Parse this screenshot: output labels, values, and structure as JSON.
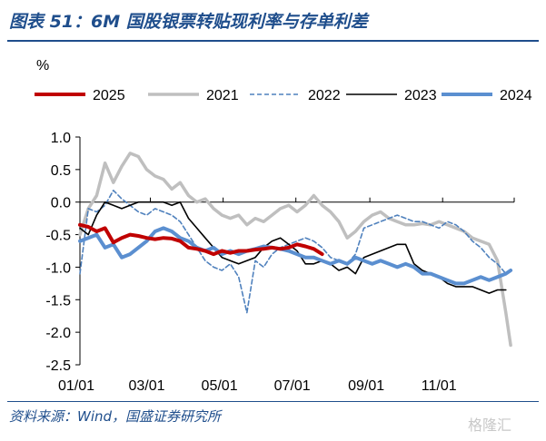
{
  "figure_title": "图表 51：6M 国股银票转贴现利率与存单利差",
  "source": "资料来源：Wind，国盛证券研究所",
  "watermark": "格隆汇",
  "chart_data": {
    "type": "line",
    "unit_label": "%",
    "ylim": [
      -2.5,
      1.0
    ],
    "yticks": [
      1.0,
      0.5,
      0.0,
      -0.5,
      -1.0,
      -1.5,
      -2.0,
      -2.5
    ],
    "ytick_labels": [
      "1.0",
      "0.5",
      "0.0",
      "-0.5",
      "-1.0",
      "-1.5",
      "-2.0",
      "-2.5"
    ],
    "xlim": [
      1,
      365
    ],
    "xticks": [
      1,
      60,
      121,
      182,
      244,
      305
    ],
    "xtick_labels": [
      "01/01",
      "03/01",
      "05/01",
      "07/01",
      "09/01",
      "11/01"
    ],
    "x_unit": "day of year",
    "legend_position": "top",
    "series": [
      {
        "name": "2025",
        "color": "#c00000",
        "dash": "solid",
        "width": 4,
        "x": [
          1,
          8,
          15,
          22,
          29,
          36,
          43,
          50,
          57,
          64,
          71,
          78,
          85,
          92,
          99,
          106,
          113,
          120,
          127,
          134,
          141,
          148,
          155,
          162,
          169,
          176,
          183,
          190,
          197,
          204
        ],
        "y": [
          -0.35,
          -0.38,
          -0.45,
          -0.4,
          -0.62,
          -0.55,
          -0.5,
          -0.52,
          -0.55,
          -0.57,
          -0.55,
          -0.56,
          -0.6,
          -0.7,
          -0.72,
          -0.75,
          -0.8,
          -0.75,
          -0.78,
          -0.75,
          -0.75,
          -0.73,
          -0.72,
          -0.7,
          -0.72,
          -0.7,
          -0.65,
          -0.68,
          -0.72,
          -0.8
        ]
      },
      {
        "name": "2021",
        "color": "#bfbfbf",
        "dash": "solid",
        "width": 3.5,
        "x": [
          1,
          8,
          15,
          22,
          29,
          36,
          43,
          50,
          57,
          64,
          71,
          78,
          85,
          92,
          99,
          106,
          113,
          120,
          127,
          134,
          141,
          148,
          155,
          162,
          169,
          176,
          183,
          190,
          197,
          204,
          211,
          218,
          225,
          232,
          239,
          246,
          253,
          260,
          267,
          274,
          281,
          288,
          295,
          302,
          309,
          316,
          323,
          330,
          337,
          344,
          351,
          358,
          362
        ],
        "y": [
          -0.5,
          -0.1,
          0.1,
          0.6,
          0.3,
          0.55,
          0.75,
          0.7,
          0.5,
          0.4,
          0.35,
          0.2,
          0.3,
          0.1,
          0.0,
          0.05,
          -0.1,
          -0.2,
          -0.25,
          -0.2,
          -0.35,
          -0.25,
          -0.3,
          -0.2,
          -0.1,
          -0.05,
          -0.15,
          -0.05,
          0.1,
          -0.05,
          -0.15,
          -0.3,
          -0.55,
          -0.45,
          -0.3,
          -0.2,
          -0.15,
          -0.25,
          -0.3,
          -0.35,
          -0.35,
          -0.33,
          -0.35,
          -0.3,
          -0.35,
          -0.4,
          -0.45,
          -0.55,
          -0.6,
          -0.65,
          -0.9,
          -1.7,
          -2.2
        ]
      },
      {
        "name": "2022",
        "color": "#4f81bd",
        "dash": "dashed",
        "width": 1.6,
        "x": [
          1,
          8,
          15,
          22,
          29,
          36,
          43,
          50,
          57,
          64,
          71,
          78,
          85,
          92,
          99,
          106,
          113,
          120,
          127,
          134,
          141,
          148,
          155,
          162,
          169,
          176,
          183,
          190,
          197,
          204,
          211,
          218,
          225,
          232,
          239,
          246,
          253,
          260,
          267,
          274,
          281,
          288,
          295,
          302,
          309,
          316,
          323,
          330,
          337,
          344,
          351,
          358
        ],
        "y": [
          -1.1,
          -0.1,
          -0.15,
          -0.05,
          0.18,
          0.05,
          -0.05,
          -0.15,
          -0.2,
          -0.1,
          -0.15,
          -0.2,
          -0.3,
          -0.5,
          -0.7,
          -0.9,
          -1.0,
          -1.05,
          -0.95,
          -1.15,
          -1.7,
          -0.9,
          -1.0,
          -0.8,
          -0.7,
          -0.65,
          -0.6,
          -0.55,
          -0.6,
          -0.7,
          -0.85,
          -0.9,
          -0.95,
          -0.8,
          -0.4,
          -0.35,
          -0.3,
          -0.25,
          -0.2,
          -0.25,
          -0.3,
          -0.3,
          -0.35,
          -0.4,
          -0.3,
          -0.35,
          -0.45,
          -0.6,
          -0.7,
          -0.85,
          -0.95,
          -1.1
        ]
      },
      {
        "name": "2023",
        "color": "#000000",
        "dash": "solid",
        "width": 1.6,
        "x": [
          1,
          8,
          15,
          22,
          29,
          36,
          43,
          50,
          57,
          64,
          71,
          78,
          85,
          92,
          99,
          106,
          113,
          120,
          127,
          134,
          141,
          148,
          155,
          162,
          169,
          176,
          183,
          190,
          197,
          204,
          211,
          218,
          225,
          232,
          239,
          246,
          253,
          260,
          267,
          274,
          281,
          288,
          295,
          302,
          309,
          316,
          323,
          330,
          337,
          344,
          351,
          358
        ],
        "y": [
          -0.4,
          -0.5,
          -0.2,
          0.0,
          -0.05,
          -0.1,
          -0.05,
          0.0,
          0.0,
          0.0,
          0.0,
          -0.05,
          0.0,
          -0.25,
          -0.4,
          -0.55,
          -0.7,
          -0.85,
          -0.9,
          -0.95,
          -0.9,
          -0.85,
          -0.7,
          -0.6,
          -0.55,
          -0.65,
          -0.75,
          -0.95,
          -0.95,
          -0.9,
          -0.95,
          -1.05,
          -1.0,
          -1.1,
          -0.85,
          -0.8,
          -0.75,
          -0.7,
          -0.65,
          -0.65,
          -0.95,
          -1.05,
          -1.1,
          -1.15,
          -1.25,
          -1.3,
          -1.3,
          -1.3,
          -1.35,
          -1.4,
          -1.35,
          -1.35
        ]
      },
      {
        "name": "2024",
        "color": "#5b8fd0",
        "dash": "solid",
        "width": 4,
        "x": [
          1,
          8,
          15,
          22,
          29,
          36,
          43,
          50,
          57,
          64,
          71,
          78,
          85,
          92,
          99,
          106,
          113,
          120,
          127,
          134,
          141,
          148,
          155,
          162,
          169,
          176,
          183,
          190,
          197,
          204,
          211,
          218,
          225,
          232,
          239,
          246,
          253,
          260,
          267,
          274,
          281,
          288,
          295,
          302,
          309,
          316,
          323,
          330,
          337,
          344,
          351,
          358,
          362
        ],
        "y": [
          -0.6,
          -0.55,
          -0.5,
          -0.7,
          -0.65,
          -0.85,
          -0.8,
          -0.7,
          -0.6,
          -0.45,
          -0.4,
          -0.45,
          -0.55,
          -0.6,
          -0.7,
          -0.75,
          -0.7,
          -0.8,
          -0.75,
          -0.8,
          -0.75,
          -0.72,
          -0.68,
          -0.7,
          -0.72,
          -0.75,
          -0.8,
          -0.85,
          -0.85,
          -0.9,
          -0.95,
          -0.9,
          -0.95,
          -0.85,
          -0.9,
          -0.95,
          -0.9,
          -0.95,
          -1.0,
          -0.95,
          -1.0,
          -1.1,
          -1.1,
          -1.15,
          -1.2,
          -1.25,
          -1.25,
          -1.2,
          -1.15,
          -1.2,
          -1.15,
          -1.1,
          -1.05
        ]
      }
    ]
  }
}
